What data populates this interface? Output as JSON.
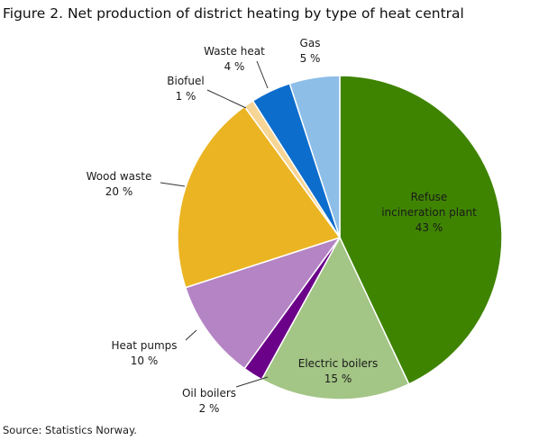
{
  "title": "Figure 2. Net production of district heating by type of heat central",
  "source": "Source: Statistics Norway.",
  "chart_data": {
    "type": "pie",
    "slices": [
      {
        "label_lines": [
          "Refuse",
          "incineration  plant"
        ],
        "value": 43,
        "value_text": "43 %",
        "color": "#3f8400"
      },
      {
        "label_lines": [
          "Electric boilers"
        ],
        "value": 15,
        "value_text": "15 %",
        "color": "#a3c585"
      },
      {
        "label_lines": [
          "Oil boilers"
        ],
        "value": 2,
        "value_text": "2 %",
        "color": "#6b0089"
      },
      {
        "label_lines": [
          "Heat pumps"
        ],
        "value": 10,
        "value_text": "10 %",
        "color": "#b484c4"
      },
      {
        "label_lines": [
          "Wood waste"
        ],
        "value": 20,
        "value_text": "20 %",
        "color": "#ebb422"
      },
      {
        "label_lines": [
          "Biofuel"
        ],
        "value": 1,
        "value_text": "1 %",
        "color": "#f7d594"
      },
      {
        "label_lines": [
          "Waste heat"
        ],
        "value": 4,
        "value_text": "4 %",
        "color": "#0d6dcd"
      },
      {
        "label_lines": [
          "Gas"
        ],
        "value": 5,
        "value_text": "5 %",
        "color": "#8dbee8"
      }
    ]
  }
}
